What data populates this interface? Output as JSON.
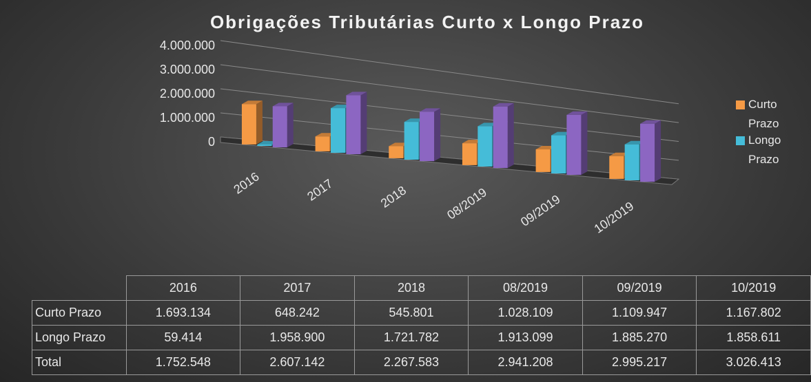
{
  "chart_data": {
    "type": "bar3d",
    "title": "Obrigações Tributárias Curto x Longo Prazo",
    "categories": [
      "2016",
      "2017",
      "2018",
      "08/2019",
      "09/2019",
      "10/2019"
    ],
    "series": [
      {
        "name": "Curto Prazo",
        "color": "#f59a45",
        "in_legend": true,
        "values": [
          1693134,
          648242,
          545801,
          1028109,
          1109947,
          1167802
        ],
        "value_labels": [
          "1.693.134",
          "648.242",
          "545.801",
          "1.028.109",
          "1.109.947",
          "1.167.802"
        ]
      },
      {
        "name": "Longo Prazo",
        "color": "#45bcd8",
        "in_legend": true,
        "values": [
          59414,
          1958900,
          1721782,
          1913099,
          1885270,
          1858611
        ],
        "value_labels": [
          "59.414",
          "1.958.900",
          "1.721.782",
          "1.913.099",
          "1.885.270",
          "1.858.611"
        ]
      },
      {
        "name": "Total",
        "color": "#8c66c2",
        "in_legend": false,
        "values": [
          1752548,
          2607142,
          2267583,
          2941208,
          2995217,
          3026413
        ],
        "value_labels": [
          "1.752.548",
          "2.607.142",
          "2.267.583",
          "2.941.208",
          "2.995.217",
          "3.026.413"
        ]
      }
    ],
    "ylim": [
      0,
      4000000
    ],
    "yticks": [
      0,
      {
        "value": 1000000,
        "label": "1.000.000"
      },
      {
        "value": 2000000,
        "label": "2.000.000"
      },
      {
        "value": 3000000,
        "label": "3.000.000"
      },
      {
        "value": 4000000,
        "label": "4.000.000"
      }
    ],
    "grid": true,
    "legend": "right",
    "data_table": true
  }
}
